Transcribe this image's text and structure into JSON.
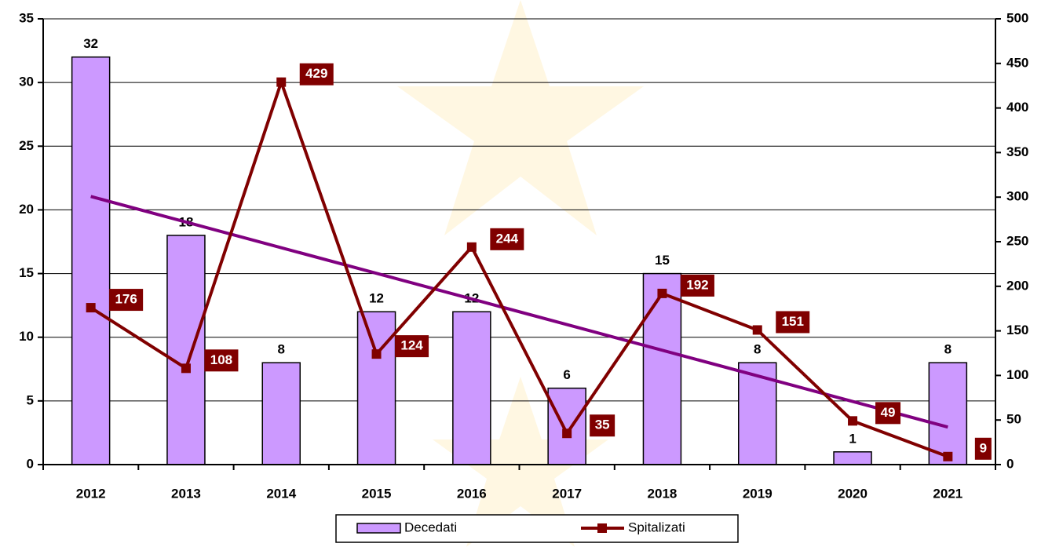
{
  "chart_data": {
    "type": "bar",
    "categories": [
      "2012",
      "2013",
      "2014",
      "2015",
      "2016",
      "2017",
      "2018",
      "2019",
      "2020",
      "2021"
    ],
    "series": [
      {
        "name": "Decedati",
        "type": "bar",
        "color": "#cc99ff",
        "values": [
          32,
          18,
          8,
          12,
          12,
          6,
          15,
          8,
          1,
          8
        ],
        "trendline": "linear",
        "trendline_color": "#800080"
      },
      {
        "name": "Spitalizati",
        "type": "line",
        "axis": "y2",
        "color": "#800000",
        "values": [
          176,
          108,
          429,
          124,
          244,
          35,
          192,
          151,
          49,
          9
        ]
      }
    ],
    "ylim": [
      0,
      35
    ],
    "yticks": [
      0,
      5,
      10,
      15,
      20,
      25,
      30,
      35
    ],
    "y2lim": [
      0,
      500
    ],
    "y2ticks": [
      0,
      50,
      100,
      150,
      200,
      250,
      300,
      350,
      400,
      450,
      500
    ],
    "grid": true,
    "legend": "bottom"
  }
}
